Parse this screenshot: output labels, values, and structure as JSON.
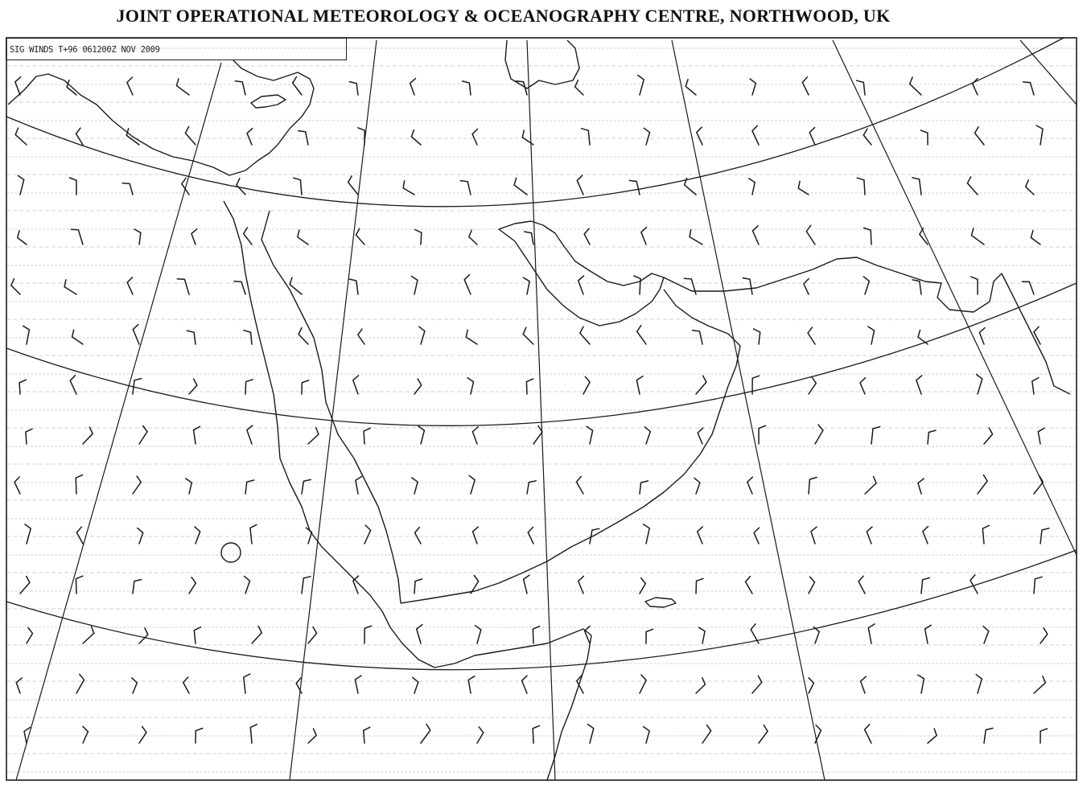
{
  "header": {
    "title": "JOINT OPERATIONAL METEOROLOGY & OCEANOGRAPHY CENTRE, NORTHWOOD, UK"
  },
  "chart_label": {
    "text": "SIG WINDS T+96 061200Z NOV 2009"
  },
  "map": {
    "kind": "significant winds chart",
    "colors": {
      "ink": "#1a1a1a",
      "background": "#ffffff",
      "scan_lines": "#bdbdbd"
    },
    "features": [
      "frame",
      "latitude-arcs",
      "meridian-lines",
      "coastlines",
      "wind-barbs",
      "scan-noise"
    ]
  }
}
